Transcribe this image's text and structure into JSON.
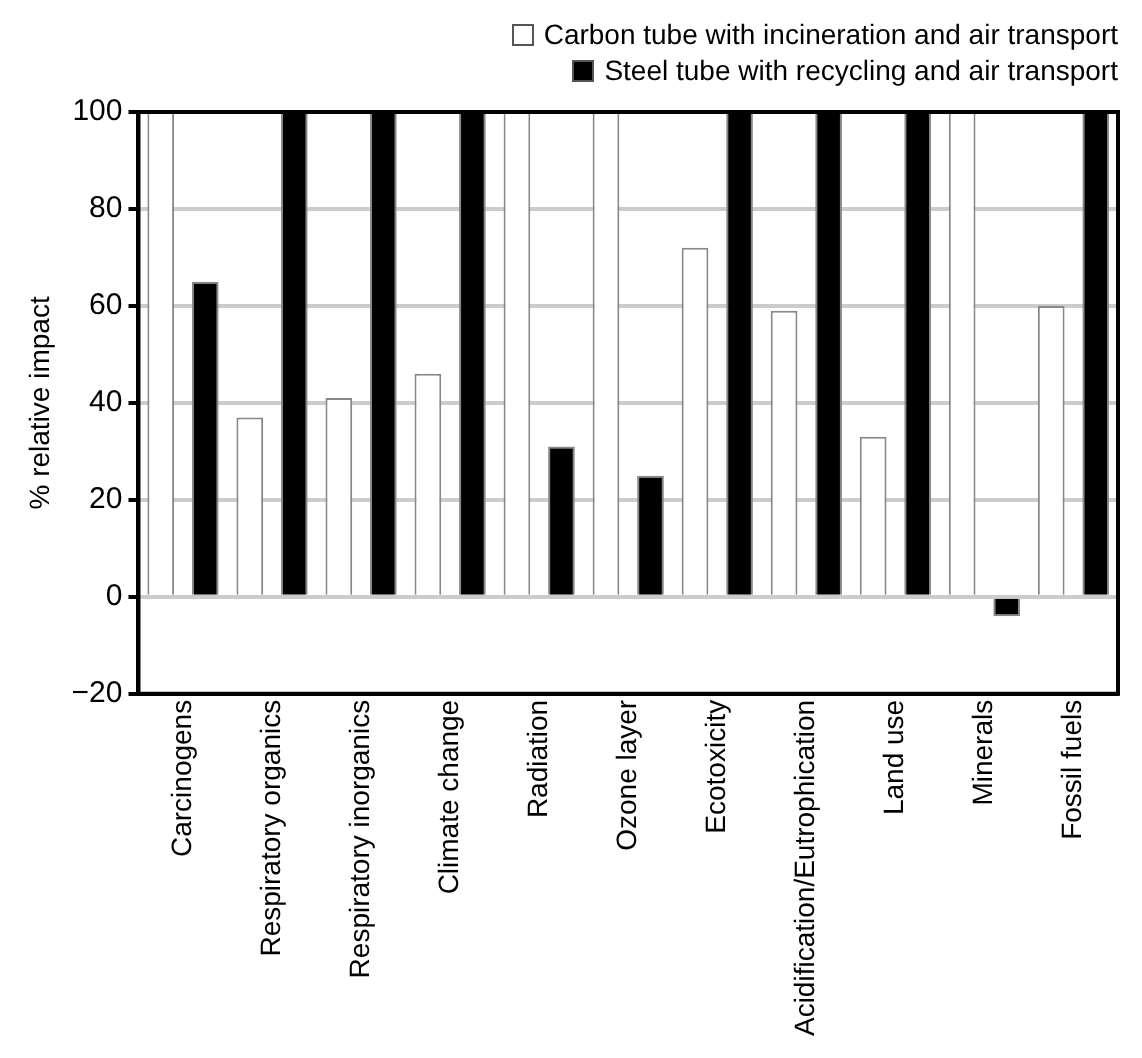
{
  "chart_data": {
    "type": "bar",
    "ylabel": "% relative impact",
    "categories": [
      "Carcinogens",
      "Respiratory organics",
      "Respiratory inorganics",
      "Climate change",
      "Radiation",
      "Ozone layer",
      "Ecotoxicity",
      "Acidification/Eutrophication",
      "Land use",
      "Minerals",
      "Fossil fuels"
    ],
    "series": [
      {
        "name": "Carbon tube with incineration and air transport",
        "color": "#ffffff",
        "values": [
          100,
          37,
          41,
          46,
          100,
          100,
          72,
          59,
          33,
          100,
          60
        ]
      },
      {
        "name": "Steel tube with recycling and air transport",
        "color": "#000000",
        "values": [
          65,
          100,
          100,
          100,
          31,
          25,
          100,
          100,
          100,
          -4,
          100
        ]
      }
    ],
    "ylim": [
      -20,
      100
    ],
    "yticks": [
      -20,
      0,
      20,
      40,
      60,
      80,
      100
    ],
    "grid": "y",
    "legend": "top right"
  }
}
